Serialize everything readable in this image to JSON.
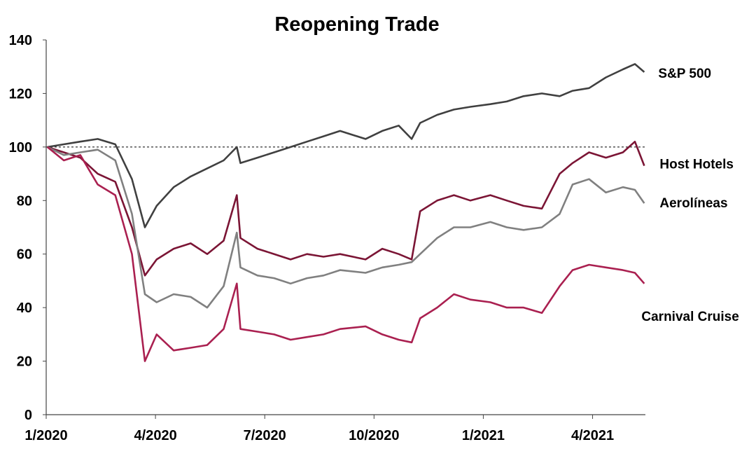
{
  "chart_data": {
    "type": "line",
    "title": "Reopening Trade",
    "xlabel": "",
    "ylabel": "",
    "ylim": [
      0,
      140
    ],
    "yticks": [
      0,
      20,
      40,
      60,
      80,
      100,
      120,
      140
    ],
    "xlim": [
      "2020-01",
      "2021-05"
    ],
    "xticks": [
      {
        "x": "2020-01",
        "label": "1/2020"
      },
      {
        "x": "2020-04",
        "label": "4/2020"
      },
      {
        "x": "2020-07",
        "label": "7/2020"
      },
      {
        "x": "2020-10",
        "label": "10/2020"
      },
      {
        "x": "2021-01",
        "label": "1/2021"
      },
      {
        "x": "2021-04",
        "label": "4/2021"
      }
    ],
    "reference_line": {
      "y": 100,
      "style": "dotted"
    },
    "grid": false,
    "legend": "labels at line ends (right)",
    "x": [
      "2020-01-02",
      "2020-01-16",
      "2020-01-30",
      "2020-02-13",
      "2020-02-27",
      "2020-03-12",
      "2020-03-23",
      "2020-04-02",
      "2020-04-16",
      "2020-04-30",
      "2020-05-14",
      "2020-05-28",
      "2020-06-08",
      "2020-06-11",
      "2020-06-25",
      "2020-07-09",
      "2020-07-23",
      "2020-08-06",
      "2020-08-20",
      "2020-09-03",
      "2020-09-24",
      "2020-10-08",
      "2020-10-22",
      "2020-11-02",
      "2020-11-09",
      "2020-11-23",
      "2020-12-07",
      "2020-12-21",
      "2021-01-07",
      "2021-01-21",
      "2021-02-04",
      "2021-02-18",
      "2021-03-04",
      "2021-03-15",
      "2021-03-29",
      "2021-04-12",
      "2021-04-26",
      "2021-05-06",
      "2021-05-14"
    ],
    "series": [
      {
        "name": "S&P 500",
        "color": "#404040",
        "values": [
          100,
          101,
          102,
          103,
          101,
          88,
          70,
          78,
          85,
          89,
          92,
          95,
          100,
          94,
          96,
          98,
          100,
          102,
          104,
          106,
          103,
          106,
          108,
          103,
          109,
          112,
          114,
          115,
          116,
          117,
          119,
          120,
          119,
          121,
          122,
          126,
          129,
          131,
          128
        ]
      },
      {
        "name": "Host Hotels",
        "color": "#7b1535",
        "values": [
          100,
          98,
          96,
          90,
          87,
          70,
          52,
          58,
          62,
          64,
          60,
          65,
          82,
          66,
          62,
          60,
          58,
          60,
          59,
          60,
          58,
          62,
          60,
          58,
          76,
          80,
          82,
          80,
          82,
          80,
          78,
          77,
          90,
          94,
          98,
          96,
          98,
          102,
          93
        ]
      },
      {
        "name": "Aerolíneas",
        "color": "#808080",
        "values": [
          100,
          97,
          98,
          99,
          95,
          75,
          45,
          42,
          45,
          44,
          40,
          48,
          68,
          55,
          52,
          51,
          49,
          51,
          52,
          54,
          53,
          55,
          56,
          57,
          60,
          66,
          70,
          70,
          72,
          70,
          69,
          70,
          75,
          86,
          88,
          83,
          85,
          84,
          79
        ]
      },
      {
        "name": "Carnival Cruise",
        "color": "#aa2050",
        "values": [
          100,
          95,
          97,
          86,
          82,
          60,
          20,
          30,
          24,
          25,
          26,
          32,
          49,
          32,
          31,
          30,
          28,
          29,
          30,
          32,
          33,
          30,
          28,
          27,
          36,
          40,
          45,
          43,
          42,
          40,
          40,
          38,
          48,
          54,
          56,
          55,
          54,
          53,
          49
        ]
      }
    ]
  }
}
